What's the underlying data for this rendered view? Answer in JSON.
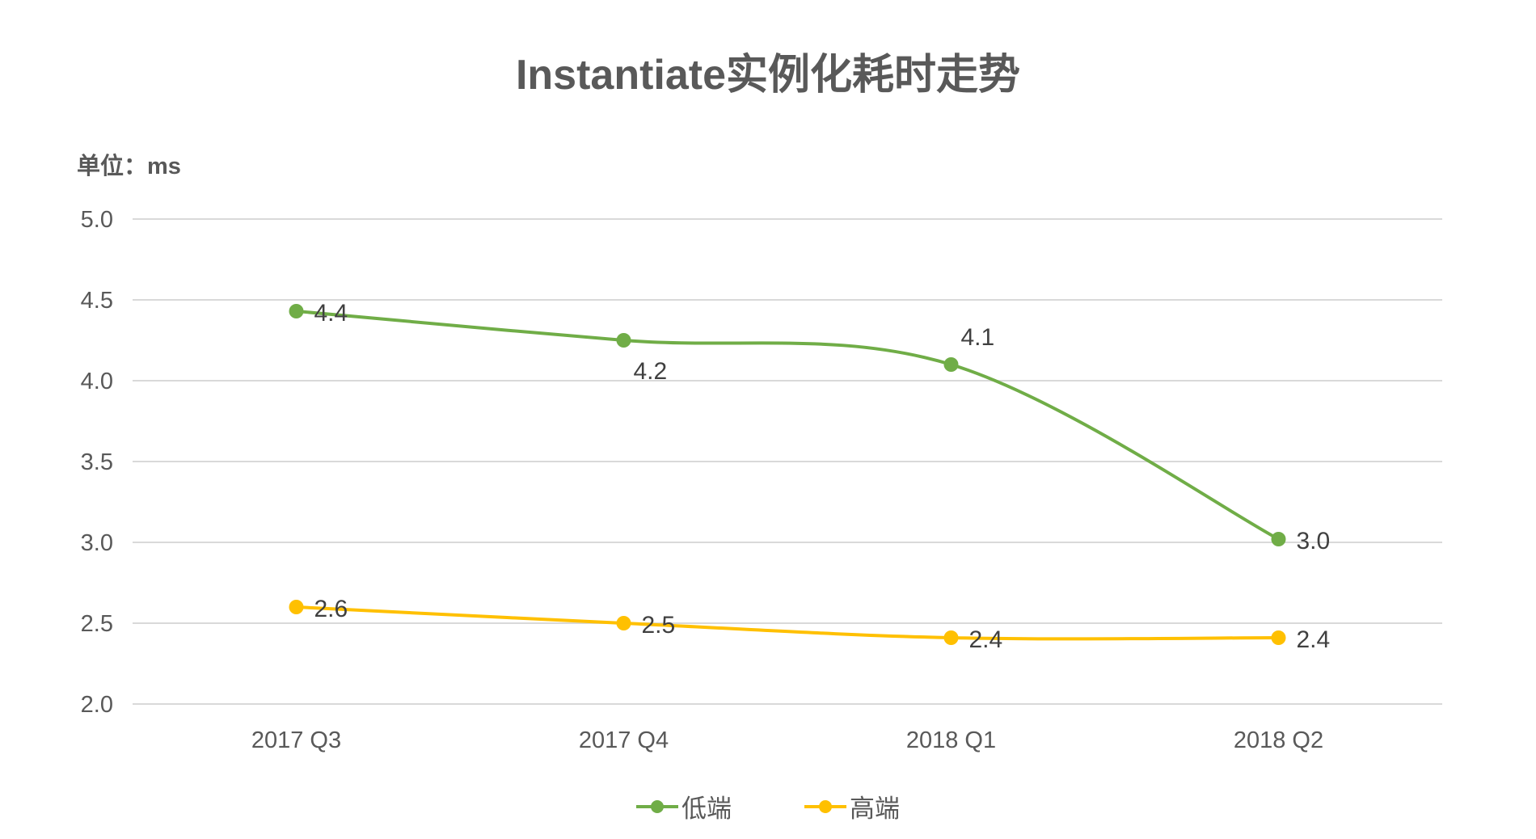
{
  "title": "Instantiate实例化耗时走势",
  "unit_label": "单位：ms",
  "colors": {
    "low": "#70AD47",
    "high": "#FFC000",
    "grid": "#D9D9D9",
    "text": "#595959",
    "label": "#404040"
  },
  "legend": [
    {
      "label": "低端",
      "color": "#70AD47"
    },
    {
      "label": "高端",
      "color": "#FFC000"
    }
  ],
  "chart_data": {
    "type": "line",
    "title": "Instantiate实例化耗时走势",
    "xlabel": "",
    "ylabel": "单位：ms",
    "categories": [
      "2017 Q3",
      "2017 Q4",
      "2018 Q1",
      "2018 Q2"
    ],
    "series": [
      {
        "name": "低端",
        "values": [
          4.43,
          4.25,
          4.1,
          3.02
        ],
        "labels": [
          "4.4",
          "4.2",
          "4.1",
          "3.0"
        ],
        "color": "#70AD47",
        "smooth": true
      },
      {
        "name": "高端",
        "values": [
          2.6,
          2.5,
          2.41,
          2.41
        ],
        "labels": [
          "2.6",
          "2.5",
          "2.4",
          "2.4"
        ],
        "color": "#FFC000",
        "smooth": true
      }
    ],
    "ylim": [
      2.0,
      5.0
    ],
    "yticks": [
      "5.0",
      "4.5",
      "4.0",
      "3.5",
      "3.0",
      "2.5",
      "2.0"
    ],
    "grid": true,
    "legend_position": "bottom"
  }
}
